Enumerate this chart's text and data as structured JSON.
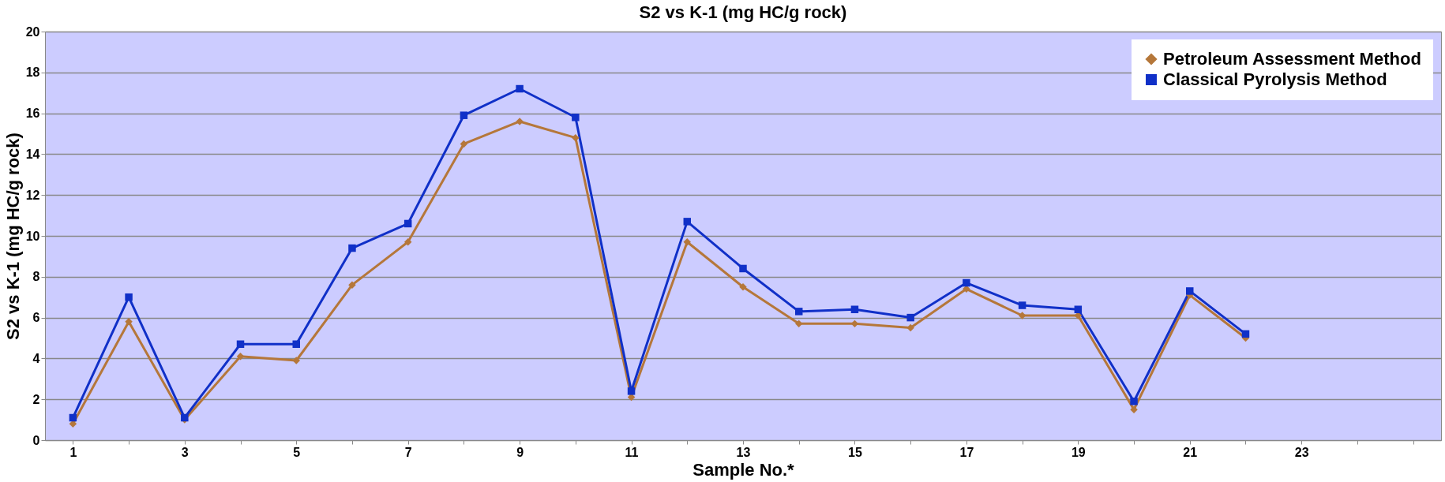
{
  "chart_data": {
    "type": "line",
    "title": "S2  vs K-1 (mg HC/g rock)",
    "xlabel": "Sample No.*",
    "ylabel": "S2 vs K-1 (mg HC/g rock)",
    "categories": [
      "1",
      null,
      "3",
      null,
      "5",
      null,
      "7",
      null,
      "9",
      null,
      "11",
      null,
      "13",
      null,
      "15",
      null,
      "17",
      null,
      "19",
      null,
      "21",
      null,
      "23",
      null,
      null
    ],
    "series": [
      {
        "name": "Petroleum Assessment Method",
        "color": "#b5773a",
        "marker": "diamond",
        "values": [
          0.8,
          5.8,
          1.0,
          4.1,
          3.9,
          7.6,
          9.7,
          14.5,
          15.6,
          14.8,
          2.1,
          9.7,
          7.5,
          5.7,
          5.7,
          5.5,
          7.4,
          6.1,
          6.1,
          1.5,
          7.1,
          5.0,
          null,
          null,
          null
        ]
      },
      {
        "name": "Classical Pyrolysis Method",
        "color": "#1030c8",
        "marker": "square",
        "values": [
          1.1,
          7.0,
          1.1,
          4.7,
          4.7,
          9.4,
          10.6,
          15.9,
          17.2,
          15.8,
          2.4,
          10.7,
          8.4,
          6.3,
          6.4,
          6.0,
          7.7,
          6.6,
          6.4,
          1.9,
          7.3,
          5.2,
          null,
          null,
          null
        ]
      }
    ],
    "ylim": [
      0,
      20
    ],
    "yticks": [
      0,
      2,
      4,
      6,
      8,
      10,
      12,
      14,
      16,
      18,
      20
    ],
    "grid": "y",
    "legend": "top right",
    "line_style": "solid"
  }
}
